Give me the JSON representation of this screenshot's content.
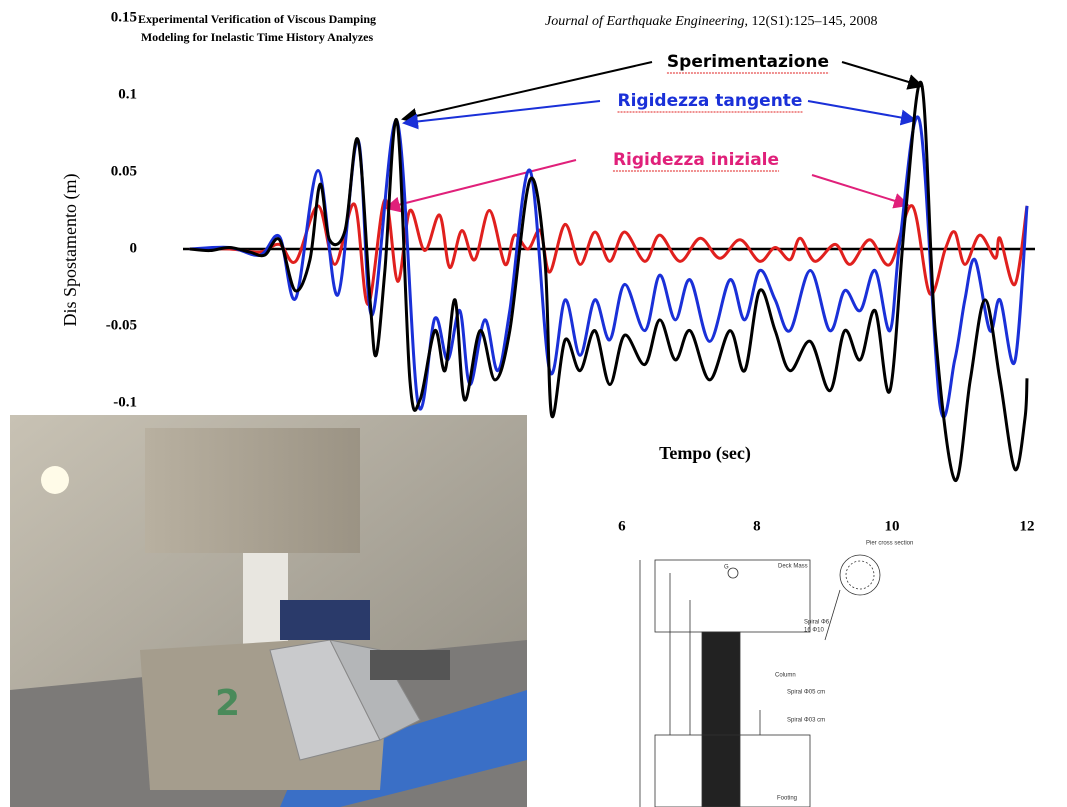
{
  "paper": {
    "title": [
      "Experimental Verification of Viscous Damping",
      "Modeling for Inelastic Time History Analyzes"
    ],
    "journal": "Journal of Earthquake Engineering",
    "citation": ", 12(S1):125–145, 2008"
  },
  "chart_data": {
    "type": "line",
    "ylabel": "Dis Spostamento (m)",
    "xlabel": "Tempo (sec)",
    "xlim": [
      -0.5,
      12
    ],
    "ylim": [
      -0.15,
      0.15
    ],
    "xticks": [
      6,
      8,
      10,
      12
    ],
    "yticks": [
      0.15,
      0.1,
      0.05,
      0,
      -0.05,
      -0.1
    ],
    "series": [
      {
        "name": "Sperimentazione",
        "color": "#000000",
        "x": [
          -0.4,
          -0.1,
          0.19,
          0.49,
          0.71,
          0.93,
          1.16,
          1.38,
          1.53,
          1.67,
          1.9,
          2.09,
          2.27,
          2.36,
          2.49,
          2.67,
          2.86,
          3.01,
          3.23,
          3.38,
          3.53,
          3.67,
          3.9,
          4.12,
          4.34,
          4.64,
          4.86,
          4.96,
          5.16,
          5.38,
          5.6,
          5.82,
          6.04,
          6.34,
          6.56,
          6.79,
          7.01,
          7.3,
          7.6,
          7.82,
          8.04,
          8.27,
          8.49,
          8.79,
          9.08,
          9.3,
          9.53,
          9.75,
          9.97,
          10.19,
          10.44,
          10.64,
          10.93,
          11.16,
          11.38,
          11.6,
          11.82,
          11.97,
          12.0
        ],
        "values": [
          0,
          -0.001,
          0.001,
          -0.002,
          -0.004,
          0.006,
          -0.027,
          -0.007,
          0.042,
          0.006,
          0.012,
          0.071,
          -0.033,
          -0.069,
          -0.014,
          0.083,
          -0.085,
          -0.098,
          -0.053,
          -0.079,
          -0.033,
          -0.098,
          -0.053,
          -0.085,
          -0.053,
          0.045,
          -0.007,
          -0.108,
          -0.059,
          -0.079,
          -0.053,
          -0.088,
          -0.056,
          -0.075,
          -0.046,
          -0.072,
          -0.053,
          -0.085,
          -0.053,
          -0.079,
          -0.027,
          -0.053,
          -0.079,
          -0.06,
          -0.092,
          -0.053,
          -0.072,
          -0.04,
          -0.092,
          0.018,
          0.107,
          -0.053,
          -0.15,
          -0.085,
          -0.033,
          -0.085,
          -0.143,
          -0.11,
          -0.084
        ]
      },
      {
        "name": "Rigidezza tangente",
        "color": "#1a30d8",
        "x": [
          -0.4,
          0.19,
          0.64,
          0.93,
          1.17,
          1.5,
          1.79,
          2.09,
          2.3,
          2.67,
          2.98,
          3.23,
          3.42,
          3.6,
          3.75,
          3.97,
          4.16,
          4.34,
          4.64,
          4.93,
          5.16,
          5.38,
          5.6,
          5.82,
          6.04,
          6.34,
          6.56,
          6.79,
          7.01,
          7.3,
          7.6,
          7.82,
          8.04,
          8.27,
          8.49,
          8.79,
          9.08,
          9.3,
          9.53,
          9.75,
          9.97,
          10.12,
          10.41,
          10.71,
          10.93,
          11.08,
          11.23,
          11.45,
          11.6,
          11.82,
          12.0
        ],
        "values": [
          0,
          0.001,
          -0.004,
          0.008,
          -0.032,
          0.051,
          -0.03,
          0.071,
          -0.043,
          0.083,
          -0.1,
          -0.045,
          -0.072,
          -0.04,
          -0.088,
          -0.046,
          -0.079,
          -0.04,
          0.051,
          -0.079,
          -0.033,
          -0.069,
          -0.033,
          -0.059,
          -0.023,
          -0.053,
          -0.017,
          -0.046,
          -0.02,
          -0.06,
          -0.02,
          -0.046,
          -0.014,
          -0.033,
          -0.053,
          -0.014,
          -0.053,
          -0.027,
          -0.04,
          -0.014,
          -0.053,
          0.006,
          0.083,
          -0.101,
          -0.072,
          -0.033,
          -0.007,
          -0.053,
          -0.033,
          -0.073,
          0.028
        ]
      },
      {
        "name": "Rigidezza iniziale",
        "color": "#e0201e",
        "x": [
          -0.4,
          0.19,
          0.64,
          0.93,
          1.17,
          1.5,
          1.75,
          2.04,
          2.24,
          2.49,
          2.68,
          2.86,
          3.08,
          3.3,
          3.45,
          3.63,
          3.82,
          4.04,
          4.27,
          4.41,
          4.61,
          4.79,
          4.93,
          5.16,
          5.38,
          5.6,
          5.82,
          6.04,
          6.34,
          6.56,
          6.86,
          7.16,
          7.45,
          7.75,
          8.04,
          8.27,
          8.49,
          8.64,
          8.86,
          9.16,
          9.38,
          9.67,
          9.97,
          10.3,
          10.56,
          10.79,
          10.93,
          11.08,
          11.3,
          11.53,
          11.6,
          11.82,
          12.0
        ],
        "values": [
          0,
          0,
          -0.002,
          0.003,
          -0.008,
          0.028,
          -0.01,
          0.029,
          -0.036,
          0.032,
          -0.021,
          0.025,
          -0.001,
          0.022,
          -0.012,
          0.012,
          -0.007,
          0.025,
          -0.01,
          0.009,
          0,
          0.012,
          -0.015,
          0.016,
          -0.01,
          0.011,
          -0.008,
          0.011,
          -0.008,
          0.009,
          -0.008,
          0.007,
          -0.006,
          0.006,
          -0.008,
          0.001,
          -0.007,
          0.007,
          -0.008,
          0.003,
          -0.01,
          0.006,
          -0.01,
          0.028,
          -0.029,
          0,
          0.011,
          -0.01,
          0.009,
          -0.006,
          0.007,
          -0.023,
          0.028
        ]
      }
    ],
    "annotations": [
      {
        "text": "Sperimentazione",
        "color": "#000000"
      },
      {
        "text": "Rigidezza tangente",
        "color": "#1a30d8"
      },
      {
        "text": "Rigidezza iniziale",
        "color": "#e0207a"
      }
    ]
  },
  "diagram": {
    "labels": [
      "Deck Mass",
      "Pier cross section",
      "G",
      "Spiral Φ6",
      "16 Φ10",
      "Column",
      "Spiral Φ05 cm",
      "Spiral Φ03 cm",
      "Footing"
    ]
  }
}
